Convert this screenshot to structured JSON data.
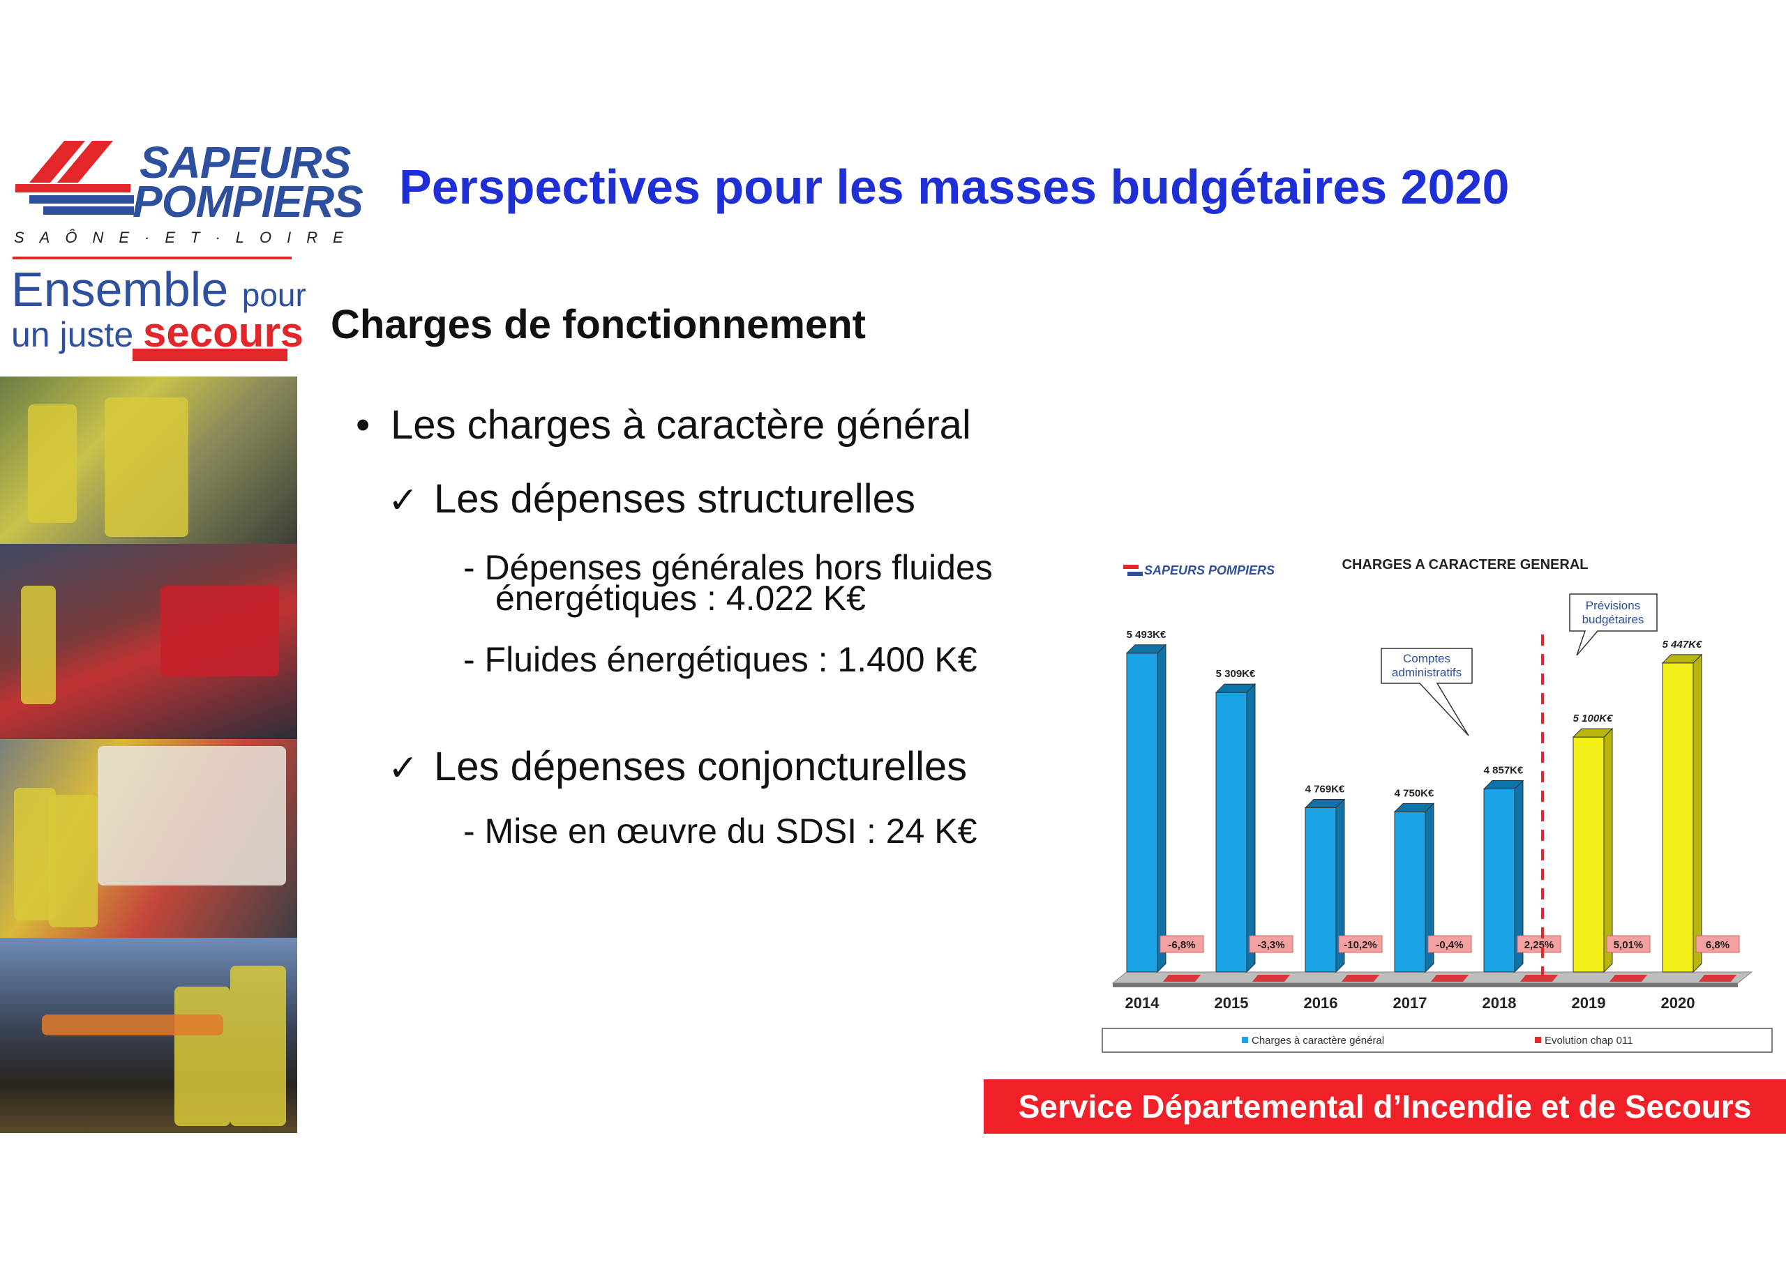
{
  "logo": {
    "line1": "SAPEURS",
    "line2": "POMPIERS",
    "region": "SAÔNE·ET·LOIRE",
    "slogan_a": "Ensemble",
    "slogan_b": "pour",
    "slogan_c": "un juste",
    "slogan_d": "secours"
  },
  "slide": {
    "title": "Perspectives pour les masses budgétaires 2020",
    "subtitle": "Charges de fonctionnement",
    "bullet": "Les charges à caractère général",
    "check1": "Les dépenses structurelles",
    "item1a": "- Dépenses générales hors fluides",
    "item1b": "énergétiques : 4.022 K€",
    "item2": "- Fluides énergétiques : 1.400 K€",
    "check2": "Les dépenses conjoncturelles",
    "item3": "- Mise en œuvre du SDSI : 24 K€",
    "bullet_glyph": "•",
    "check_glyph": "✓"
  },
  "footer": "Service Départemental d’Incendie et de Secours",
  "chart_data": {
    "type": "bar",
    "title": "CHARGES A CARACTERE GENERAL",
    "categories": [
      "2014",
      "2015",
      "2016",
      "2017",
      "2018",
      "2019",
      "2020"
    ],
    "series": [
      {
        "name": "Charges à caractère général",
        "values": [
          5493,
          5309,
          4769,
          4750,
          4857,
          5100,
          5447
        ],
        "labels": [
          "5 493K€",
          "5 309K€",
          "4 769K€",
          "4 750K€",
          "4 857K€",
          "5 100K€",
          "5 447K€"
        ],
        "colors": [
          "#1aa3e6",
          "#1aa3e6",
          "#1aa3e6",
          "#1aa3e6",
          "#1aa3e6",
          "#f2ee1a",
          "#f2ee1a"
        ]
      },
      {
        "name": "Evolution chap 011",
        "values": [
          -6.8,
          -3.3,
          -10.2,
          -0.4,
          2.25,
          5.01,
          6.8
        ],
        "labels": [
          "-6,8%",
          "-3,3%",
          "-10,2%",
          "-0,4%",
          "2,25%",
          "5,01%",
          "6,8%"
        ],
        "color": "#f2a0a0"
      }
    ],
    "callouts": {
      "comptes": "Comptes administratifs",
      "previsions": "Prévisions budgétaires"
    },
    "logo_text": "SAPEURS POMPIERS",
    "ylim": [
      4000,
      5600
    ],
    "grid": false,
    "legend": "bottom"
  }
}
